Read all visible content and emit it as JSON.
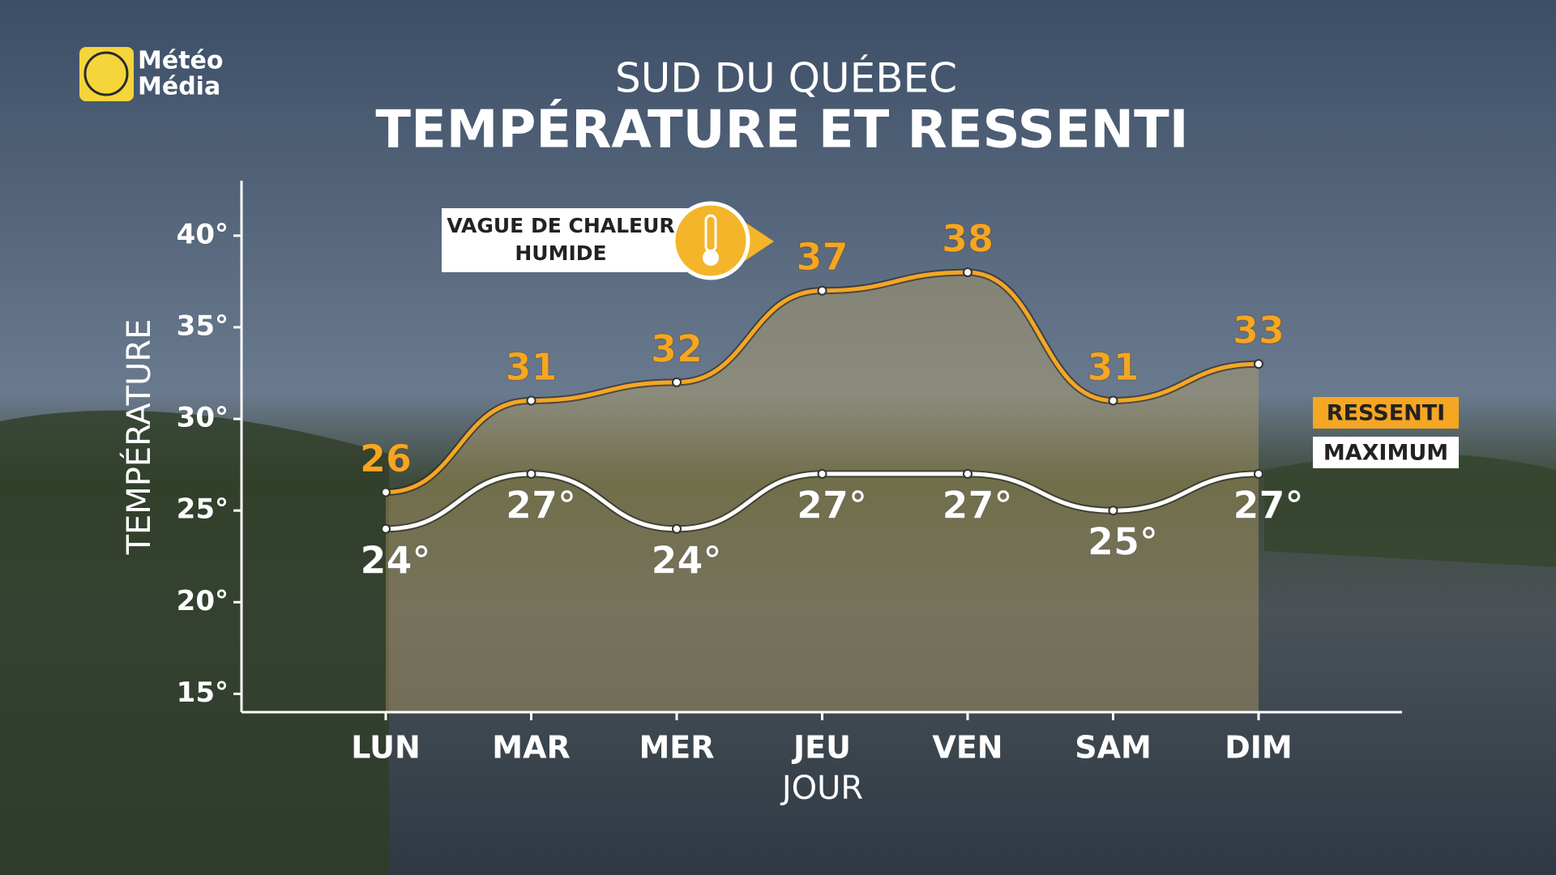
{
  "brand": {
    "lines": [
      "Météo",
      "Média"
    ]
  },
  "chart_data": {
    "type": "line",
    "subtitle": "SUD DU QUÉBEC",
    "title": "TEMPÉRATURE ET RESSENTI",
    "annotation": [
      "VAGUE DE CHALEUR",
      "HUMIDE"
    ],
    "y_label": "TEMPÉRATURE",
    "x_label": "JOUR",
    "categories": [
      "LUN",
      "MAR",
      "MER",
      "JEU",
      "VEN",
      "SAM",
      "DIM"
    ],
    "series": [
      {
        "name": "RESSENTI",
        "color": "#f5a623",
        "values": [
          26,
          31,
          32,
          37,
          38,
          31,
          33
        ]
      },
      {
        "name": "MAXIMUM",
        "color": "#ffffff",
        "values": [
          24,
          27,
          24,
          27,
          27,
          25,
          27
        ],
        "value_labels": [
          "24°",
          "27°",
          "24°",
          "27°",
          "27°",
          "25°",
          "27°"
        ]
      }
    ],
    "ylim": [
      14,
      43
    ],
    "yticks": [
      {
        "value": 15,
        "label": "15°"
      },
      {
        "value": 20,
        "label": "20°"
      },
      {
        "value": 25,
        "label": "25°"
      },
      {
        "value": 30,
        "label": "30°"
      },
      {
        "value": 35,
        "label": "35°"
      },
      {
        "value": 40,
        "label": "40°"
      }
    ],
    "grid": false,
    "legend": "right"
  }
}
